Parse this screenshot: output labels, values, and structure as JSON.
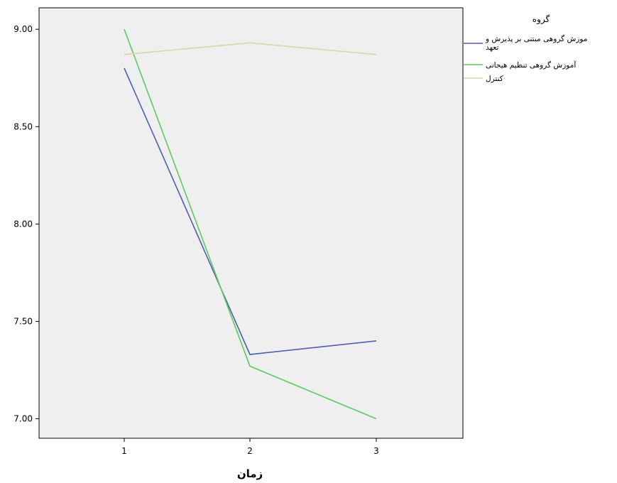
{
  "chart_data": {
    "type": "line",
    "title": "",
    "xlabel": "زمان",
    "ylabel": "",
    "x": [
      "1",
      "2",
      "3"
    ],
    "ylim": [
      6.9,
      9.11
    ],
    "yticks": [
      "7.00",
      "7.50",
      "8.00",
      "8.50",
      "9.00"
    ],
    "grid": false,
    "legend": {
      "title": "گروه",
      "position": "right"
    },
    "series": [
      {
        "name": "موزش گروهی مبتنی بر پذیرش و تعهد",
        "name_line1": "موزش گروهی مبتنی بر پذیرش و",
        "name_line2": "تعهد",
        "color": "#4f5fae",
        "values": [
          8.8,
          7.33,
          7.4
        ]
      },
      {
        "name": "آموزش گروهی تنظیم هیجانی",
        "color": "#5ec95e",
        "values": [
          9.0,
          7.27,
          7.0
        ]
      },
      {
        "name": "کنترل",
        "color": "#e0d3a8",
        "values": [
          8.87,
          8.93,
          8.87
        ]
      }
    ],
    "plot_background": "#efefef"
  }
}
